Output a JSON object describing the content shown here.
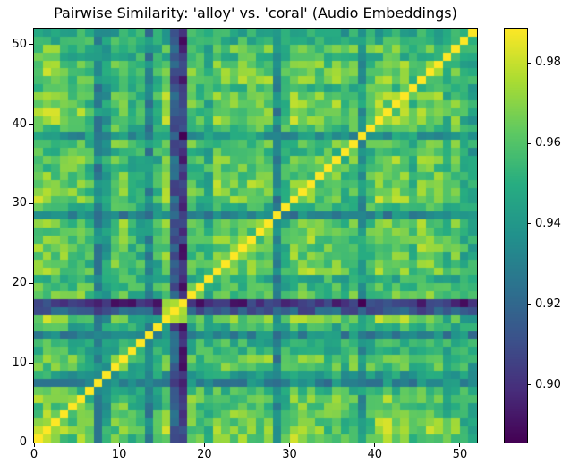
{
  "figure": {
    "background": "#ffffff",
    "text_color": "#000000",
    "spine_color": "#000000"
  },
  "chart_data": {
    "type": "heatmap",
    "title": "Pairwise Similarity: 'alloy' vs. 'coral' (Audio Embeddings)",
    "xlabel": "",
    "ylabel": "",
    "size": 52,
    "x_range": [
      0,
      52
    ],
    "y_range": [
      0,
      52
    ],
    "x_ticks": [
      0,
      10,
      20,
      30,
      40,
      50
    ],
    "y_ticks": [
      0,
      10,
      20,
      30,
      40,
      50
    ],
    "grid": false,
    "vmin": 0.8857,
    "vmax": 0.9885,
    "diagonal_value": 0.9885,
    "colorbar": {
      "ticks": [
        0.98,
        0.96,
        0.94,
        0.92,
        0.9
      ],
      "position": "right"
    },
    "colormap": {
      "name": "viridis",
      "stops": [
        [
          0.0,
          "#440154"
        ],
        [
          0.125,
          "#472d7b"
        ],
        [
          0.25,
          "#3b528b"
        ],
        [
          0.375,
          "#2c728e"
        ],
        [
          0.5,
          "#21918c"
        ],
        [
          0.625,
          "#27ad81"
        ],
        [
          0.75,
          "#5ec962"
        ],
        [
          0.875,
          "#aadc32"
        ],
        [
          1.0,
          "#fde725"
        ]
      ]
    },
    "row_profile": [
      0.97,
      0.974,
      0.971,
      0.965,
      0.96,
      0.966,
      0.955,
      0.928,
      0.94,
      0.958,
      0.965,
      0.951,
      0.949,
      0.929,
      0.948,
      0.969,
      0.908,
      0.892,
      0.961,
      0.955,
      0.949,
      0.967,
      0.97,
      0.963,
      0.965,
      0.967,
      0.961,
      0.965,
      0.926,
      0.951,
      0.969,
      0.971,
      0.967,
      0.962,
      0.957,
      0.965,
      0.954,
      0.959,
      0.936,
      0.959,
      0.969,
      0.971,
      0.967,
      0.969,
      0.954,
      0.965,
      0.971,
      0.967,
      0.952,
      0.96,
      0.948,
      0.944
    ],
    "bright_pairs": [
      [
        15,
        16
      ],
      [
        15,
        17
      ],
      [
        16,
        17
      ]
    ],
    "bright_pair_value": 0.975
  }
}
